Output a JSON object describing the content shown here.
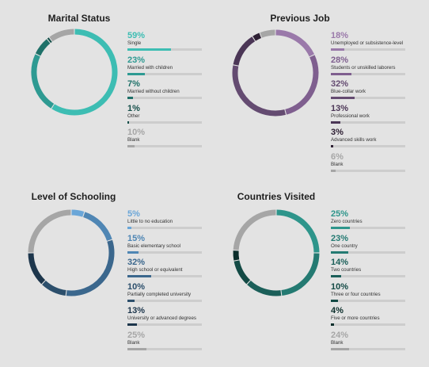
{
  "chart_data": [
    {
      "type": "pie",
      "title": "Marital Status",
      "donut": true,
      "categories": [
        "Single",
        "Married with children",
        "Married without children",
        "Other",
        "Blank"
      ],
      "values": [
        59,
        23,
        7,
        1,
        10
      ],
      "labels": [
        "59%",
        "23%",
        "7%",
        "1%",
        "10%"
      ],
      "colors": [
        "#3dbdb3",
        "#2e9a92",
        "#1f7169",
        "#164f4a",
        "#a6a6a6"
      ]
    },
    {
      "type": "pie",
      "title": "Previous Job",
      "donut": true,
      "categories": [
        "Unemployed or subsistence-level",
        "Students or unskilled laborers",
        "Blue-collar work",
        "Professional work",
        "Advanced skills work",
        "Blank"
      ],
      "values": [
        18,
        28,
        32,
        13,
        3,
        6
      ],
      "labels": [
        "18%",
        "28%",
        "32%",
        "13%",
        "3%",
        "6%"
      ],
      "colors": [
        "#9a79aa",
        "#7f5f8f",
        "#644b71",
        "#4b3656",
        "#2e2034",
        "#a6a6a6"
      ]
    },
    {
      "type": "pie",
      "title": "Level of Schooling",
      "donut": true,
      "categories": [
        "Little to no education",
        "Basic elementary school",
        "High school or equivalent",
        "Partially completed university",
        "University or advanced degrees",
        "Blank"
      ],
      "values": [
        5,
        15,
        32,
        10,
        13,
        25
      ],
      "labels": [
        "5%",
        "15%",
        "32%",
        "10%",
        "13%",
        "25%"
      ],
      "colors": [
        "#6aa6d8",
        "#4f86b4",
        "#3b678d",
        "#2c4f6c",
        "#1d364c",
        "#a6a6a6"
      ]
    },
    {
      "type": "pie",
      "title": "Countries Visited",
      "donut": true,
      "categories": [
        "Zero countries",
        "One country",
        "Two countries",
        "Three or four countries",
        "Five or more countries",
        "Blank"
      ],
      "values": [
        25,
        23,
        14,
        10,
        4,
        24
      ],
      "labels": [
        "25%",
        "23%",
        "14%",
        "10%",
        "4%",
        "24%"
      ],
      "colors": [
        "#2e958b",
        "#247a72",
        "#1b5f59",
        "#134a45",
        "#0b2e2b",
        "#a6a6a6"
      ]
    }
  ]
}
